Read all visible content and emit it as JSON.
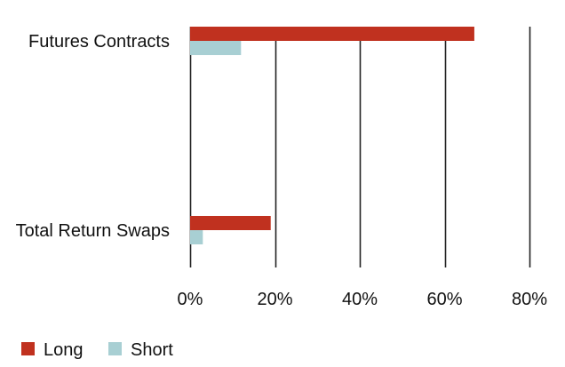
{
  "chart_data": {
    "type": "bar",
    "orientation": "horizontal",
    "title": "",
    "xlabel": "",
    "ylabel": "",
    "categories": [
      "Futures Contracts",
      "Total Return Swaps"
    ],
    "series": [
      {
        "name": "Long",
        "values": [
          67,
          19
        ],
        "color": "#c0311f"
      },
      {
        "name": "Short",
        "values": [
          12,
          3
        ],
        "color": "#a8cfd3"
      }
    ],
    "xlim": [
      0,
      80
    ],
    "xticks": [
      0,
      20,
      40,
      60,
      80
    ],
    "xtick_labels": [
      "0%",
      "20%",
      "40%",
      "60%",
      "80%"
    ],
    "value_format": "percent",
    "grid": "vertical",
    "legend_position": "bottom-left"
  }
}
